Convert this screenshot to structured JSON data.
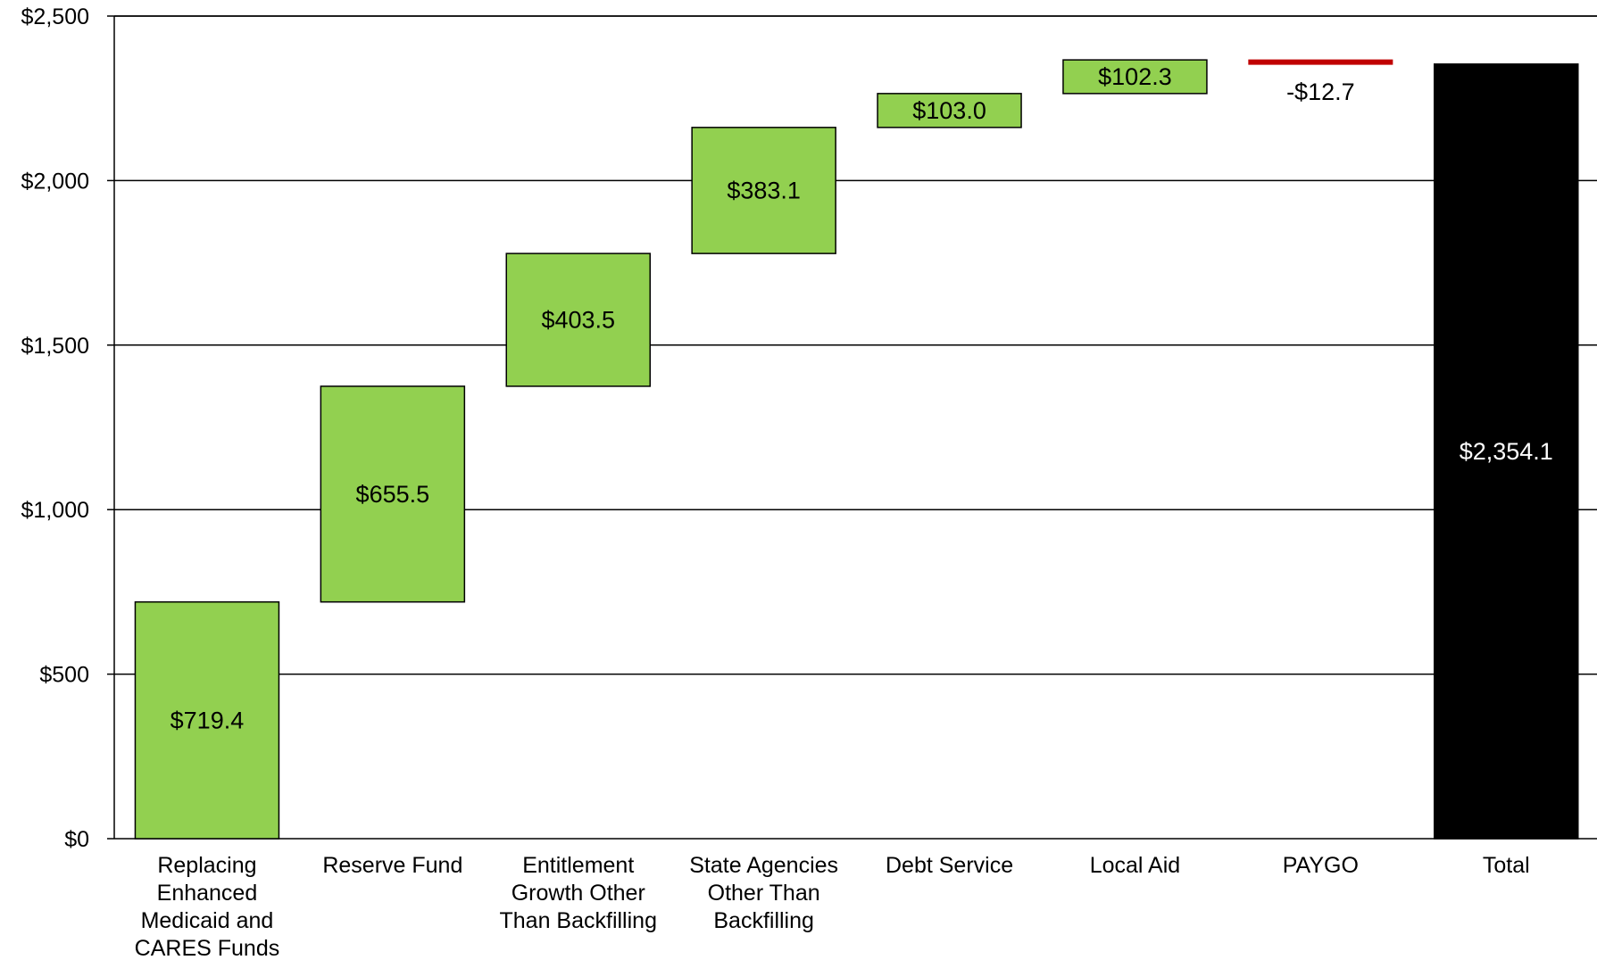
{
  "chart_data": {
    "type": "waterfall",
    "title": "",
    "xlabel": "",
    "ylabel": "",
    "ylim": [
      0,
      2500
    ],
    "y_ticks": [
      0,
      500,
      1000,
      1500,
      2000,
      2500
    ],
    "y_tick_labels": [
      "$0",
      "$500",
      "$1,000",
      "$1,500",
      "$2,000",
      "$2,500"
    ],
    "grid": true,
    "legend": "none",
    "categories": [
      [
        "Replacing",
        "Enhanced",
        "Medicaid and",
        "CARES Funds"
      ],
      [
        "Reserve Fund"
      ],
      [
        "Entitlement",
        "Growth Other",
        "Than Backfilling"
      ],
      [
        "State Agencies",
        "Other Than",
        "Backfilling"
      ],
      [
        "Debt Service"
      ],
      [
        "Local Aid"
      ],
      [
        "PAYGO"
      ],
      [
        "Total"
      ]
    ],
    "values": [
      719.4,
      655.5,
      403.5,
      383.1,
      103.0,
      102.3,
      -12.7,
      2354.1
    ],
    "bar_kinds": [
      "increase",
      "increase",
      "increase",
      "increase",
      "increase",
      "increase",
      "decrease",
      "total"
    ],
    "data_labels": [
      "$719.4",
      "$655.5",
      "$403.5",
      "$383.1",
      "$103.0",
      "$102.3",
      "-$12.7",
      "$2,354.1"
    ],
    "colors": {
      "increase": "#92d050",
      "decrease": "#c00000",
      "total": "#000000",
      "gridline": "#000000",
      "label_on_total": "#ffffff",
      "label": "#000000"
    }
  }
}
